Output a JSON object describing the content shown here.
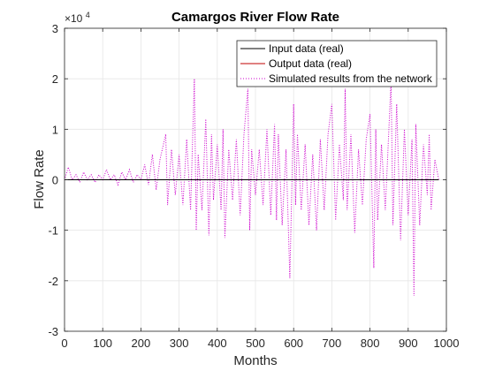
{
  "chart_data": {
    "type": "line",
    "title": "Camargos River Flow Rate",
    "xlabel": "Months",
    "ylabel": "Flow Rate",
    "xlim": [
      0,
      1000
    ],
    "ylim": [
      -3,
      3
    ],
    "y_multiplier_label": "×10",
    "y_multiplier_exponent": "4",
    "x_ticks": [
      "0",
      "100",
      "200",
      "300",
      "400",
      "500",
      "600",
      "700",
      "800",
      "900",
      "1000"
    ],
    "y_ticks": [
      "-3",
      "-2",
      "-1",
      "0",
      "1",
      "2",
      "3"
    ],
    "grid": true,
    "legend_position": "top-right",
    "series": [
      {
        "name": "Input data (real)",
        "color": "#000000",
        "style": "solid",
        "x": [
          0,
          100,
          200,
          300,
          400,
          500,
          600,
          700,
          800,
          900,
          980
        ],
        "y": [
          0,
          0,
          0,
          0,
          0,
          0,
          0,
          0,
          0,
          0,
          0
        ]
      },
      {
        "name": "Output data (real)",
        "color": "#c00000",
        "style": "solid",
        "x": [
          0,
          100,
          200,
          300,
          400,
          500,
          600,
          700,
          800,
          900,
          980
        ],
        "y": [
          0,
          0,
          0,
          0,
          0,
          0,
          0,
          0,
          0,
          0,
          0
        ]
      },
      {
        "name": "Simulated results from the network",
        "color": "#cc00cc",
        "style": "dotted",
        "x": [
          0,
          10,
          20,
          30,
          40,
          50,
          60,
          70,
          80,
          90,
          100,
          110,
          120,
          130,
          140,
          150,
          160,
          170,
          180,
          190,
          200,
          210,
          220,
          230,
          240,
          250,
          265,
          270,
          280,
          290,
          300,
          310,
          320,
          330,
          340,
          345,
          350,
          360,
          370,
          378,
          385,
          390,
          400,
          410,
          415,
          420,
          430,
          440,
          450,
          460,
          470,
          480,
          485,
          490,
          500,
          510,
          520,
          530,
          540,
          550,
          555,
          560,
          570,
          580,
          590,
          600,
          605,
          610,
          620,
          630,
          640,
          650,
          660,
          670,
          680,
          690,
          700,
          710,
          720,
          730,
          735,
          740,
          750,
          760,
          770,
          780,
          790,
          800,
          810,
          815,
          820,
          830,
          840,
          850,
          855,
          860,
          870,
          880,
          890,
          900,
          910,
          915,
          920,
          930,
          940,
          950,
          955,
          960,
          970,
          980
        ],
        "y": [
          0,
          0.25,
          0,
          0.1,
          -0.05,
          0.15,
          0,
          0.1,
          -0.05,
          0.1,
          0,
          0.2,
          0,
          0.1,
          -0.1,
          0.15,
          0,
          0.2,
          -0.05,
          0.1,
          0,
          0.3,
          -0.1,
          0.5,
          -0.2,
          0.4,
          0.9,
          -0.5,
          0.6,
          -0.3,
          0.5,
          -0.5,
          0.8,
          -0.6,
          2.0,
          -1.0,
          0.5,
          -0.6,
          1.2,
          -1.1,
          0.9,
          -0.4,
          0.7,
          -0.6,
          1.0,
          -1.15,
          0.6,
          -0.4,
          0.8,
          -0.7,
          0.9,
          1.8,
          -1.0,
          0.6,
          -0.3,
          0.6,
          -0.5,
          1.0,
          -0.7,
          1.1,
          -0.8,
          0.9,
          -0.9,
          0.6,
          -1.95,
          1.5,
          -0.5,
          0.9,
          -0.6,
          0.7,
          -0.9,
          0.5,
          -1.0,
          0.8,
          -0.6,
          0.9,
          1.5,
          -0.8,
          0.7,
          -0.4,
          1.8,
          -0.6,
          0.9,
          -1.05,
          0.6,
          -0.5,
          0.8,
          1.3,
          -1.75,
          1.0,
          -0.8,
          0.7,
          -0.6,
          1.1,
          2.0,
          -0.9,
          1.5,
          -1.2,
          1.0,
          -0.7,
          0.8,
          -2.3,
          1.1,
          -0.9,
          0.7,
          -0.3,
          0.9,
          -0.6,
          0.4,
          0
        ]
      }
    ]
  }
}
